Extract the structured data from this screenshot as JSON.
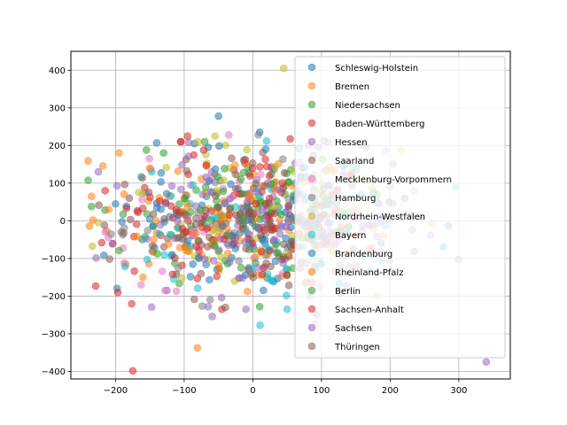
{
  "chart_data": {
    "type": "scatter",
    "title": "",
    "xlabel": "",
    "ylabel": "",
    "xlim": [
      -265,
      375
    ],
    "ylim": [
      -420,
      450
    ],
    "xticks": [
      -200,
      -100,
      0,
      100,
      200,
      300
    ],
    "yticks": [
      -400,
      -300,
      -200,
      -100,
      0,
      100,
      200,
      300,
      400
    ],
    "xtick_labels": [
      "−200",
      "−100",
      "0",
      "100",
      "200",
      "300"
    ],
    "ytick_labels": [
      "−400",
      "−300",
      "−200",
      "−100",
      "0",
      "100",
      "200",
      "300",
      "400"
    ],
    "grid": true,
    "legend_position": "upper-right",
    "marker_alpha": 0.55,
    "series": [
      {
        "name": "Schleswig-Holstein",
        "color": "#1f77b4",
        "cluster": {
          "center": [
            0,
            0
          ],
          "spread": [
            100,
            95
          ]
        },
        "points": [
          [
            -50,
            278
          ],
          [
            10,
            235
          ],
          [
            -140,
            207
          ],
          [
            -85,
            205
          ]
        ]
      },
      {
        "name": "Bremen",
        "color": "#ff7f0e",
        "cluster": {
          "center": [
            -30,
            10
          ],
          "spread": [
            100,
            90
          ]
        },
        "points": [
          [
            -235,
            65
          ],
          [
            -195,
            180
          ],
          [
            -160,
            -150
          ],
          [
            -185,
            -115
          ]
        ]
      },
      {
        "name": "Niedersachsen",
        "color": "#2ca02c",
        "cluster": {
          "center": [
            0,
            0
          ],
          "spread": [
            100,
            95
          ]
        },
        "points": [
          [
            -235,
            38
          ],
          [
            -155,
            188
          ],
          [
            -130,
            180
          ]
        ]
      },
      {
        "name": "Baden-Württemberg",
        "color": "#d62728",
        "cluster": {
          "center": [
            -20,
            0
          ],
          "spread": [
            100,
            95
          ]
        },
        "points": [
          [
            -220,
            -58
          ],
          [
            -95,
            225
          ],
          [
            -105,
            210
          ]
        ]
      },
      {
        "name": "Hessen",
        "color": "#9467bd",
        "cluster": {
          "center": [
            20,
            -20
          ],
          "spread": [
            100,
            95
          ]
        },
        "points": [
          [
            -225,
            130
          ],
          [
            340,
            -375
          ],
          [
            -125,
            -185
          ]
        ]
      },
      {
        "name": "Saarland",
        "color": "#8c564b",
        "cluster": {
          "center": [
            -10,
            0
          ],
          "spread": [
            100,
            90
          ]
        },
        "points": [
          [
            -180,
            60
          ]
        ]
      },
      {
        "name": "Mecklenburg-Vorpommern",
        "color": "#e377c2",
        "cluster": {
          "center": [
            0,
            0
          ],
          "spread": [
            100,
            95
          ]
        },
        "points": [
          [
            -215,
            -30
          ],
          [
            -35,
            228
          ],
          [
            -128,
            -185
          ]
        ]
      },
      {
        "name": "Hamburg",
        "color": "#7f7f7f",
        "cluster": {
          "center": [
            20,
            0
          ],
          "spread": [
            100,
            90
          ]
        },
        "points": []
      },
      {
        "name": "Nordrhein-Westfalen",
        "color": "#bcbd22",
        "cluster": {
          "center": [
            0,
            0
          ],
          "spread": [
            100,
            95
          ]
        },
        "points": [
          [
            45,
            405
          ],
          [
            -55,
            225
          ],
          [
            -225,
            -5
          ],
          [
            -80,
            210
          ]
        ]
      },
      {
        "name": "Bayern",
        "color": "#17becf",
        "cluster": {
          "center": [
            10,
            -30
          ],
          "spread": [
            95,
            90
          ]
        },
        "points": [
          [
            20,
            212
          ],
          [
            50,
            -235
          ],
          [
            -115,
            -155
          ]
        ]
      },
      {
        "name": "Brandenburg",
        "color": "#1f77b4",
        "cluster": {
          "center": [
            0,
            0
          ],
          "spread": [
            95,
            95
          ]
        },
        "points": [
          [
            -65,
            195
          ],
          [
            -200,
            45
          ]
        ]
      },
      {
        "name": "Rheinland-Pfalz",
        "color": "#ff7f0e",
        "cluster": {
          "center": [
            -30,
            10
          ],
          "spread": [
            100,
            90
          ]
        },
        "points": [
          [
            -210,
            30
          ]
        ]
      },
      {
        "name": "Berlin",
        "color": "#2ca02c",
        "cluster": {
          "center": [
            0,
            0
          ],
          "spread": [
            100,
            95
          ]
        },
        "points": [
          [
            10,
            -228
          ],
          [
            -70,
            210
          ]
        ]
      },
      {
        "name": "Sachsen-Anhalt",
        "color": "#d62728",
        "cluster": {
          "center": [
            -20,
            10
          ],
          "spread": [
            100,
            95
          ]
        },
        "points": [
          [
            -215,
            80
          ],
          [
            -45,
            -235
          ],
          [
            -105,
            210
          ]
        ]
      },
      {
        "name": "Sachsen",
        "color": "#9467bd",
        "cluster": {
          "center": [
            10,
            -20
          ],
          "spread": [
            100,
            95
          ]
        },
        "points": [
          [
            -10,
            -235
          ],
          [
            -65,
            -228
          ]
        ]
      },
      {
        "name": "Thüringen",
        "color": "#8c564b",
        "cluster": {
          "center": [
            0,
            0
          ],
          "spread": [
            100,
            95
          ]
        },
        "points": [
          [
            -40,
            -230
          ]
        ]
      }
    ]
  }
}
